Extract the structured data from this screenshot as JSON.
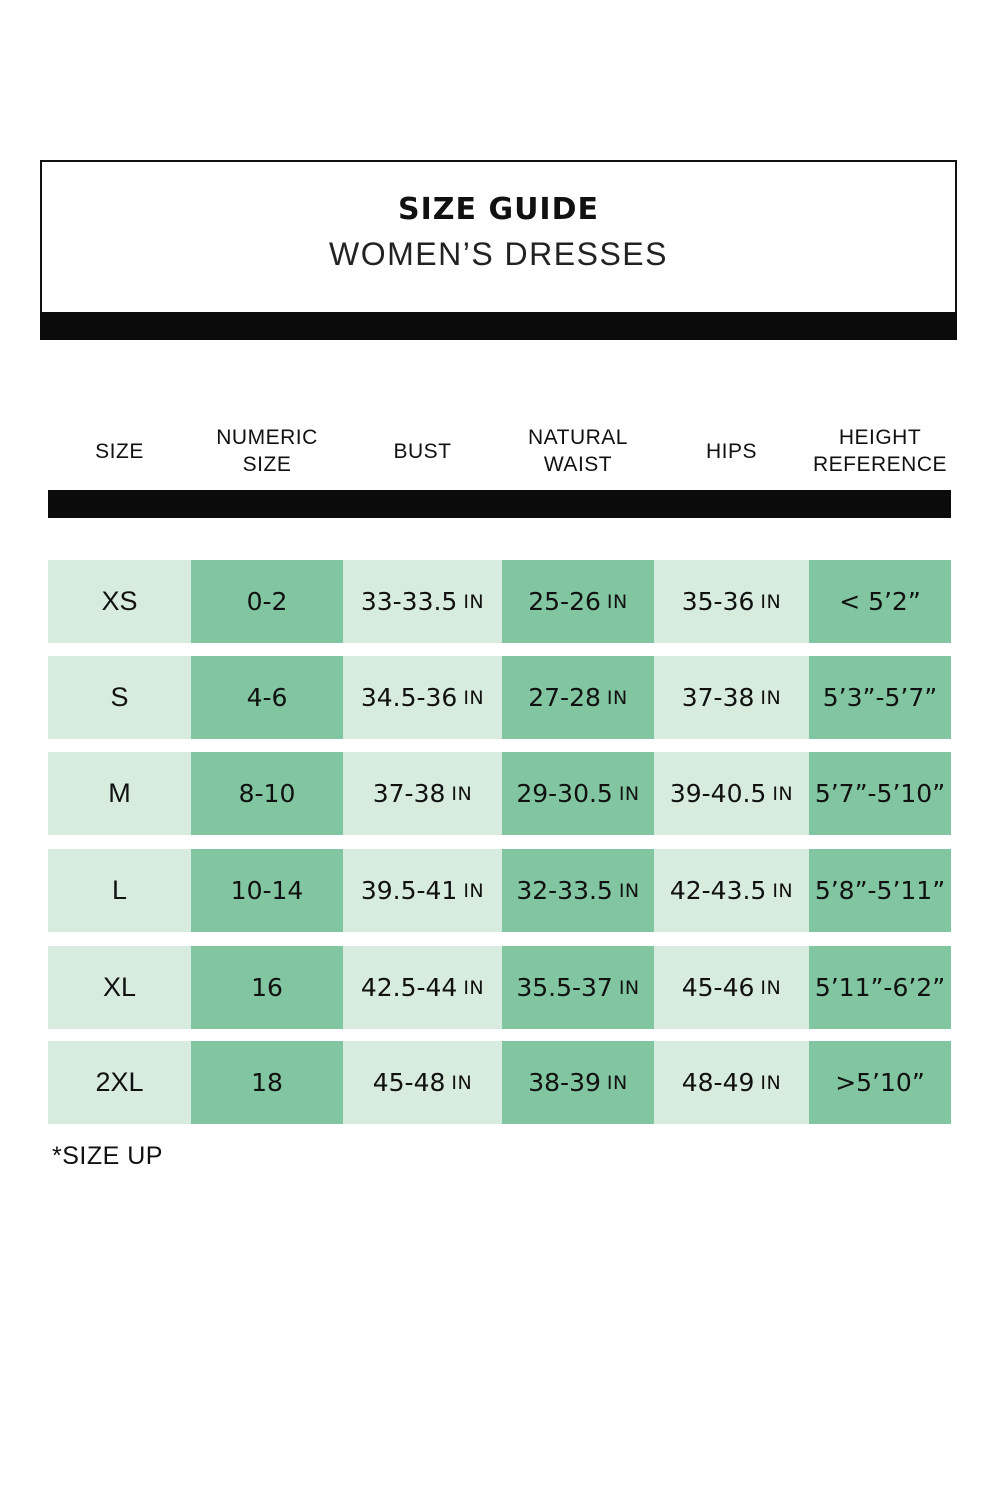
{
  "title": {
    "main": "SIZE GUIDE",
    "sub": "WOMEN’S DRESSES"
  },
  "columns": [
    "SIZE",
    "NUMERIC\nSIZE",
    "BUST",
    "NATURAL\nWAIST",
    "HIPS",
    "HEIGHT\nREFERENCE"
  ],
  "unit": "IN",
  "rows": [
    {
      "size": "XS",
      "numeric": "0-2",
      "bust": "33-33.5",
      "waist": "25-26",
      "hips": "35-36",
      "height": "< 5’2”"
    },
    {
      "size": "S",
      "numeric": "4-6",
      "bust": "34.5-36",
      "waist": "27-28",
      "hips": "37-38",
      "height": "5’3”-5’7”"
    },
    {
      "size": "M",
      "numeric": "8-10",
      "bust": "37-38",
      "waist": "29-30.5",
      "hips": "39-40.5",
      "height": "5’7”-5’10”"
    },
    {
      "size": "L",
      "numeric": "10-14",
      "bust": "39.5-41",
      "waist": "32-33.5",
      "hips": "42-43.5",
      "height": "5’8”-5’11”"
    },
    {
      "size": "XL",
      "numeric": "16",
      "bust": "42.5-44",
      "waist": "35.5-37",
      "hips": "45-46",
      "height": "5’11”-6’2”"
    },
    {
      "size": "2XL",
      "numeric": "18",
      "bust": "45-48",
      "waist": "38-39",
      "hips": "48-49",
      "height": ">5’10”"
    }
  ],
  "footnote": "*SIZE UP",
  "colors": {
    "light_cell": "#d7ecdf",
    "dark_cell": "#81c6a0",
    "bar": "#0b0b0b"
  }
}
